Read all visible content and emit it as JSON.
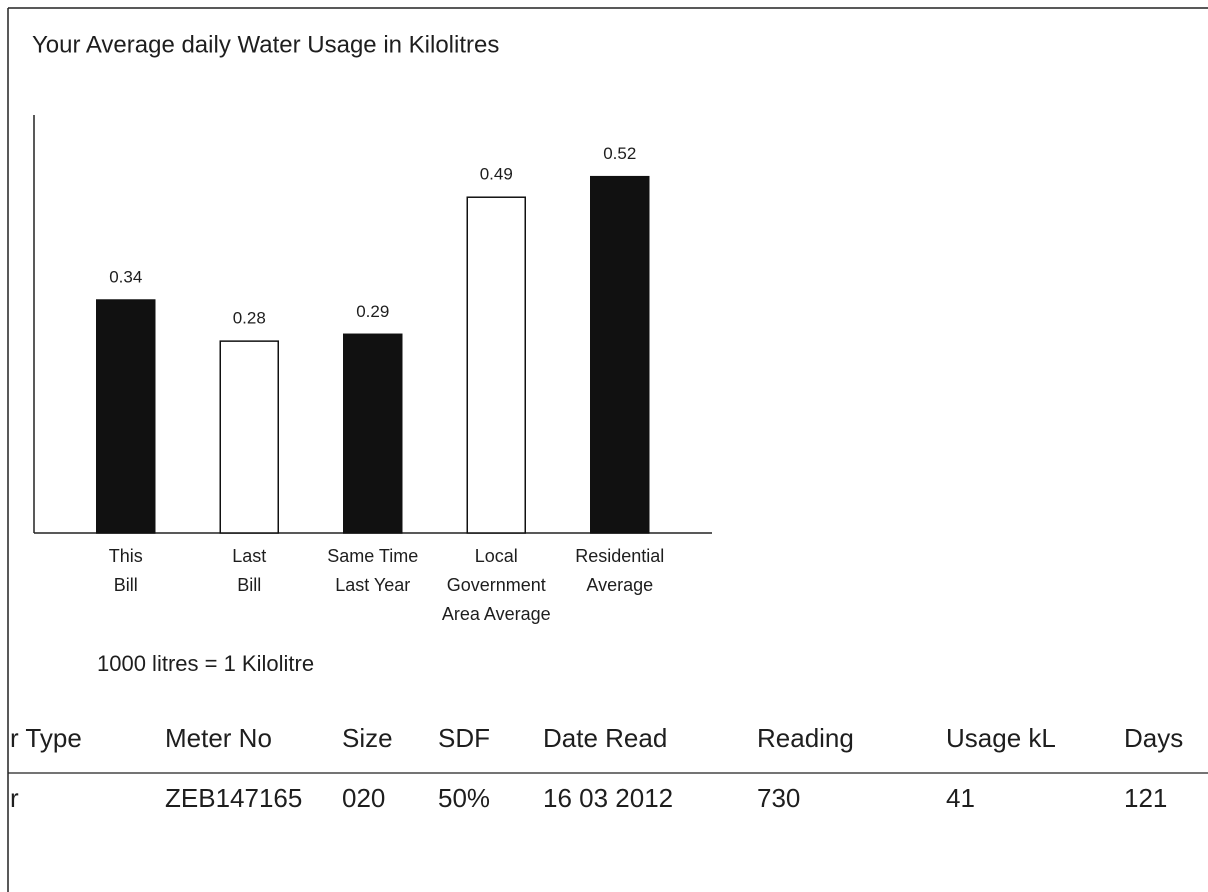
{
  "chart_data": {
    "type": "bar",
    "title": "Your Average daily Water Usage in Kilolitres",
    "categories": [
      "This\nBill",
      "Last\nBill",
      "Same Time\nLast Year",
      "Local\nGovernment\nArea Average",
      "Residential\nAverage"
    ],
    "values": [
      0.34,
      0.28,
      0.29,
      0.49,
      0.52
    ],
    "colors": [
      "#111111",
      "#ffffff",
      "#111111",
      "#ffffff",
      "#111111"
    ],
    "ylim": [
      0,
      0.61
    ]
  },
  "note": "1000 litres = 1 Kilolitre",
  "table": {
    "header": [
      "r Type",
      "Meter No",
      "Size",
      "SDF",
      "Date Read",
      "Reading",
      "Usage kL",
      "Days"
    ],
    "rows": [
      [
        "r",
        "ZEB147165",
        "020",
        "50%",
        "16 03 2012",
        "730",
        "41",
        "121"
      ]
    ]
  }
}
